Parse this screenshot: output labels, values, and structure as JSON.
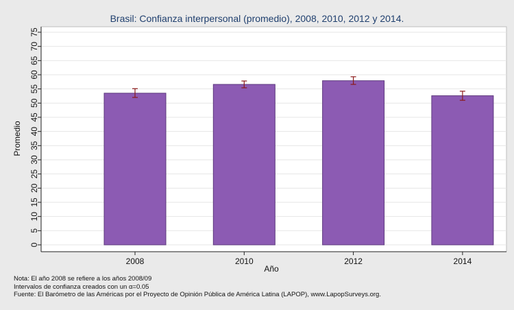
{
  "chart_data": {
    "type": "bar",
    "title": "Brasil: Confianza interpersonal (promedio), 2008, 2010, 2012 y 2014.",
    "xlabel": "Año",
    "ylabel": "Promedio",
    "categories": [
      "2008",
      "2010",
      "2012",
      "2014"
    ],
    "values": [
      53.5,
      56.6,
      57.9,
      52.6
    ],
    "error_low": [
      52.0,
      55.4,
      56.6,
      51.0
    ],
    "error_high": [
      55.1,
      57.8,
      59.3,
      54.2
    ],
    "ylim": [
      0,
      75
    ],
    "yticks": [
      0,
      5,
      10,
      15,
      20,
      25,
      30,
      35,
      40,
      45,
      50,
      55,
      60,
      65,
      70,
      75
    ],
    "grid": true,
    "colors": {
      "bar": "#8c5bb3",
      "bar_edge": "#5e3a7e",
      "error": "#8b1a1a",
      "title": "#1f3f6e",
      "plot_bg": "#ffffff",
      "page_bg": "#eaeaea",
      "grid": "#e6e6e6"
    }
  },
  "notes": [
    "Nota: El año 2008 se refiere a los años 2008/09",
    "Intervalos de confianza creados con un α=0.05",
    "Fuente: El Barómetro de las Américas por el Proyecto de Opinión Pública de América Latina (LAPOP), www.LapopSurveys.org."
  ]
}
